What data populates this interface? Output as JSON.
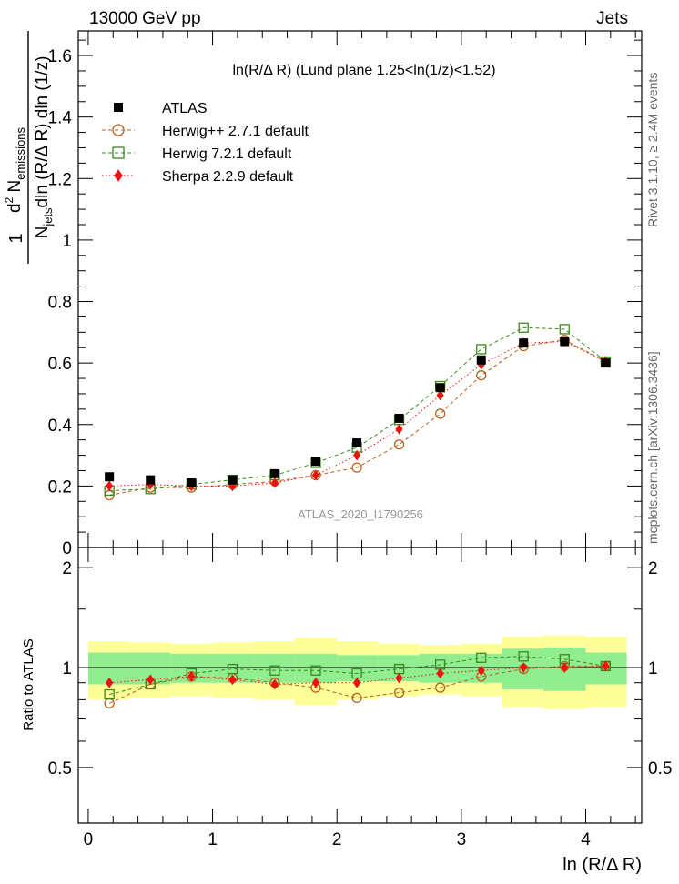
{
  "header": {
    "energy_label": "13000 GeV pp",
    "process_label": "Jets",
    "rivet_label": "Rivet 3.1.10, ≥ 2.4M events",
    "mcplots_label": "mcplots.cern.ch [arXiv:1306.3436]",
    "analysis_id": "ATLAS_2020_I1790256"
  },
  "chart_data": {
    "type": "line",
    "title": "ln(R/Δ R) (Lund plane 1.25<ln(1/z)<1.52)",
    "xlabel": "ln (R/Δ R)",
    "ylabel": "1 / N_jets · d² N_emissions / dln(R/Δ R) dln(1/z)",
    "ylabel_parts": {
      "num_prefix": "d",
      "num_sup": "2",
      "num_main": " N",
      "num_sub": "emissions",
      "den_main": "N",
      "den_sub": "jets",
      "den_rest": "dln (R/Δ R) dln (1/z)",
      "one": "1"
    },
    "ratio_ylabel": "Ratio to ATLAS",
    "xlim": [
      -0.08,
      4.45
    ],
    "ylim": [
      0,
      1.68
    ],
    "ratio_ylim": [
      0.34,
      2.3
    ],
    "x_ticks": [
      "0",
      "1",
      "2",
      "3",
      "4"
    ],
    "y_ticks": [
      "0",
      "0.2",
      "0.4",
      "0.6",
      "0.8",
      "1",
      "1.2",
      "1.4",
      "1.6"
    ],
    "ratio_ticks": [
      "0.5",
      "1",
      "2"
    ],
    "legend_position": "top-left",
    "x": [
      0.17,
      0.5,
      0.83,
      1.16,
      1.5,
      1.83,
      2.16,
      2.5,
      2.83,
      3.16,
      3.5,
      3.83,
      4.16
    ],
    "bin_edges": [
      0.0,
      0.33,
      0.66,
      1.0,
      1.33,
      1.66,
      2.0,
      2.33,
      2.66,
      3.0,
      3.33,
      3.66,
      4.0,
      4.33
    ],
    "series": [
      {
        "name": "ATLAS",
        "style": "data",
        "color": "#000000",
        "values": [
          0.23,
          0.22,
          0.21,
          0.22,
          0.24,
          0.28,
          0.34,
          0.42,
          0.52,
          0.61,
          0.665,
          0.67,
          0.6
        ]
      },
      {
        "name": "Herwig++ 2.7.1 default",
        "style": "circle",
        "color": "#b8621b",
        "values": [
          0.17,
          0.195,
          0.195,
          0.205,
          0.215,
          0.235,
          0.26,
          0.335,
          0.435,
          0.56,
          0.655,
          0.675,
          0.605
        ]
      },
      {
        "name": "Herwig 7.2.1 default",
        "style": "square",
        "color": "#3a8a1a",
        "values": [
          0.185,
          0.19,
          0.205,
          0.22,
          0.235,
          0.275,
          0.325,
          0.415,
          0.525,
          0.645,
          0.715,
          0.71,
          0.605
        ]
      },
      {
        "name": "Sherpa 2.2.9 default",
        "style": "diamond",
        "color": "#ee1111",
        "values": [
          0.2,
          0.205,
          0.2,
          0.2,
          0.21,
          0.235,
          0.3,
          0.385,
          0.495,
          0.595,
          0.665,
          0.67,
          0.605
        ]
      }
    ],
    "ratio_series": [
      {
        "name": "Herwig++ 2.7.1 default",
        "values": [
          0.78,
          0.89,
          0.94,
          0.93,
          0.9,
          0.87,
          0.81,
          0.84,
          0.87,
          0.94,
          0.99,
          1.01,
          1.01
        ]
      },
      {
        "name": "Herwig 7.2.1 default",
        "values": [
          0.83,
          0.89,
          0.96,
          0.99,
          0.98,
          0.98,
          0.96,
          0.99,
          1.02,
          1.07,
          1.08,
          1.06,
          1.01
        ]
      },
      {
        "name": "Sherpa 2.2.9 default",
        "values": [
          0.9,
          0.92,
          0.94,
          0.92,
          0.89,
          0.9,
          0.9,
          0.93,
          0.96,
          0.98,
          1.0,
          1.0,
          1.01
        ]
      }
    ],
    "band_inner": {
      "color": "#90ee90",
      "half_widths": [
        0.11,
        0.11,
        0.1,
        0.1,
        0.1,
        0.1,
        0.09,
        0.09,
        0.1,
        0.1,
        0.14,
        0.15,
        0.11
      ]
    },
    "band_outer": {
      "color": "#ffff99",
      "half_widths": [
        0.2,
        0.19,
        0.18,
        0.19,
        0.2,
        0.23,
        0.2,
        0.18,
        0.17,
        0.18,
        0.24,
        0.25,
        0.24
      ]
    }
  }
}
